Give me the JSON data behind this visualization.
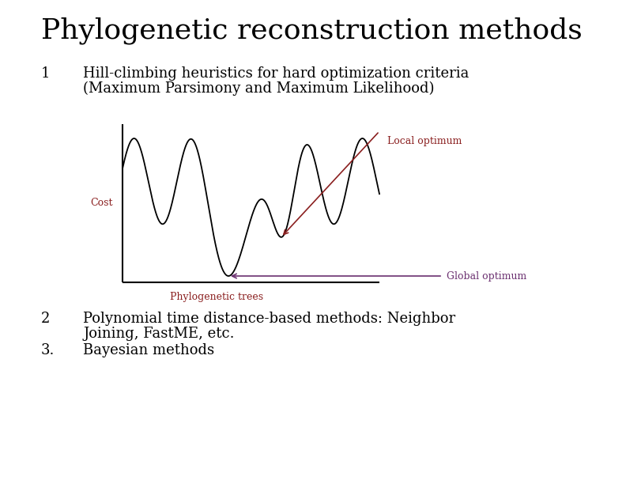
{
  "title": "Phylogenetic reconstruction methods",
  "title_fontsize": 26,
  "title_font": "DejaVu Serif",
  "bg_color": "#ffffff",
  "text_color": "#000000",
  "dark_red": "#8B2020",
  "purple": "#6B3070",
  "item1_number": "1",
  "item1_line1": "Hill-climbing heuristics for hard optimization criteria",
  "item1_line2": "(Maximum Parsimony and Maximum Likelihood)",
  "item2_number": "2",
  "item2_line1": "Polynomial time distance-based methods: Neighbor",
  "item2_line2": "Joining, FastME, etc.",
  "item3_number": "3.",
  "item3_line1": "Bayesian methods",
  "label_cost": "Cost",
  "label_xtree": "Phylogenetic trees",
  "label_local": "Local optimum",
  "label_global": "Global optimum",
  "body_fontsize": 13,
  "annotation_fontsize": 9,
  "plot_line_color": "#000000"
}
